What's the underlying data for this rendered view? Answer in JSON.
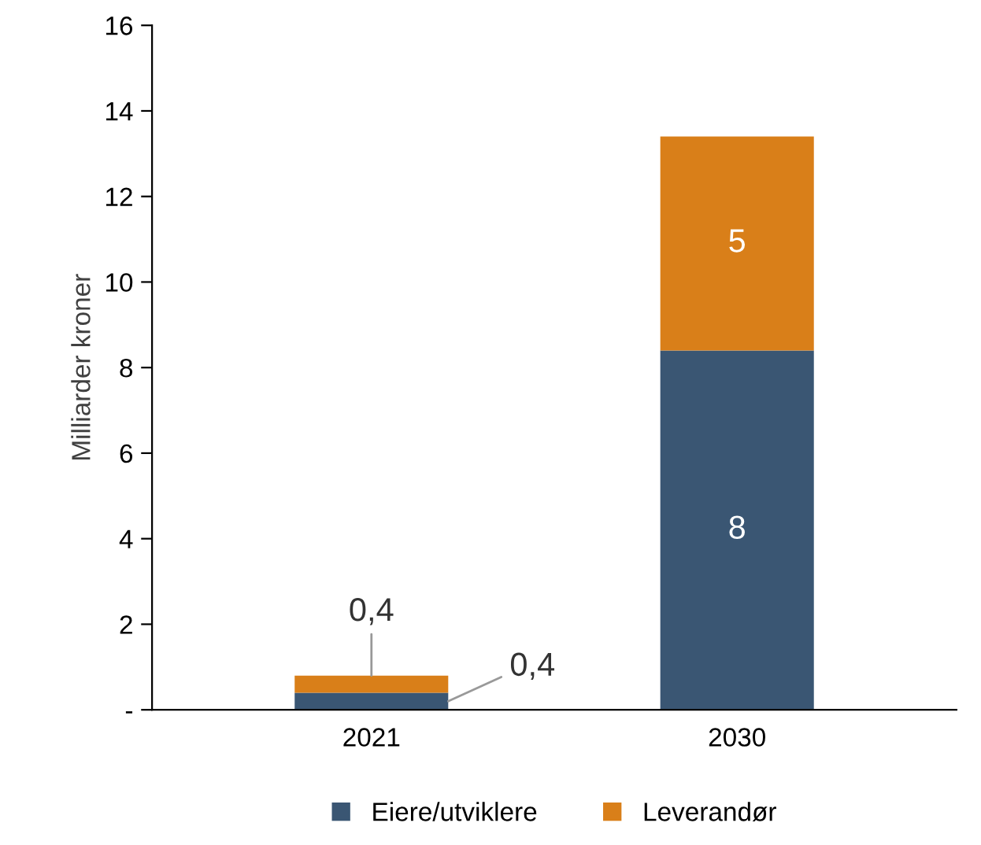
{
  "chart_data": {
    "type": "bar",
    "stacked": true,
    "ylabel": "Milliarder kroner",
    "categories": [
      "2021",
      "2030"
    ],
    "series": [
      {
        "name": "Eiere/utviklere",
        "color": "#3a5673",
        "values": [
          0.4,
          8.4
        ],
        "value_labels": [
          "0,4",
          "8"
        ]
      },
      {
        "name": "Leverandør",
        "color": "#d97f19",
        "values": [
          0.4,
          5.0
        ],
        "value_labels": [
          "0,4",
          "5"
        ]
      }
    ],
    "ylim": [
      0,
      16
    ],
    "yticks": [
      {
        "value": 0,
        "label": "-"
      },
      2,
      4,
      6,
      8,
      10,
      12,
      14,
      16
    ],
    "grid": false,
    "legend": "bottom"
  }
}
